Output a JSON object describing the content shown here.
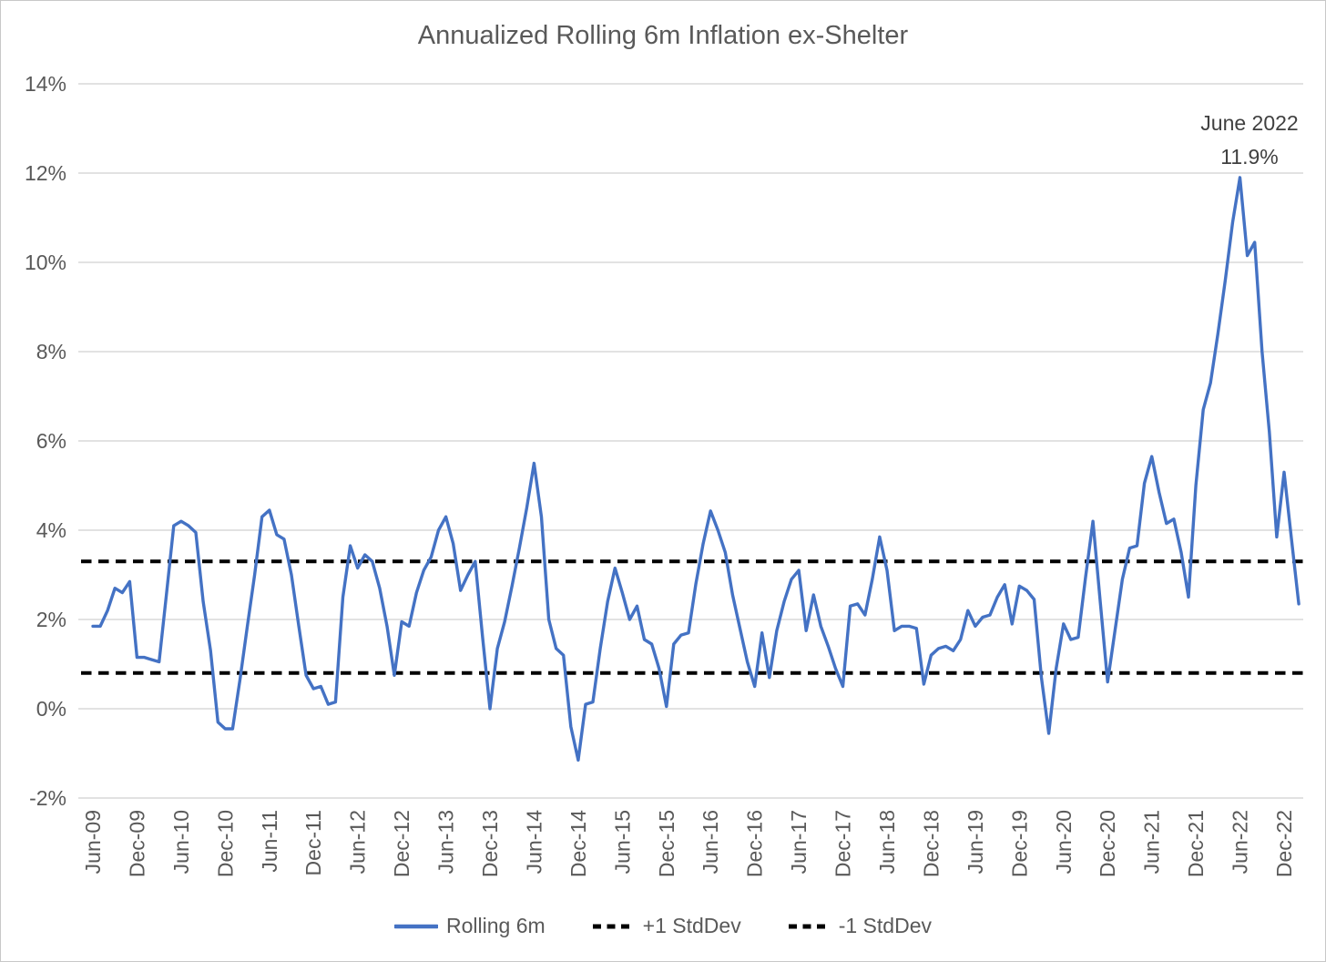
{
  "chart": {
    "title": "Annualized Rolling 6m Inflation ex-Shelter",
    "annotation": {
      "line1": "June 2022",
      "line2": "11.9%"
    }
  },
  "chart_data": {
    "type": "line",
    "title": "Annualized Rolling 6m Inflation ex-Shelter",
    "frequency": "monthly",
    "x_start": "Jun-09",
    "x_end": "Feb-23",
    "ylim": [
      -2,
      14
    ],
    "y_tick_labels": [
      "14%",
      "12%",
      "10%",
      "8%",
      "6%",
      "4%",
      "2%",
      "0%",
      "-2%"
    ],
    "y_tick_values": [
      14,
      12,
      10,
      8,
      6,
      4,
      2,
      0,
      -2
    ],
    "x_tick_labels": [
      "Jun-09",
      "Dec-09",
      "Jun-10",
      "Dec-10",
      "Jun-11",
      "Dec-11",
      "Jun-12",
      "Dec-12",
      "Jun-13",
      "Dec-13",
      "Jun-14",
      "Dec-14",
      "Jun-15",
      "Dec-15",
      "Jun-16",
      "Dec-16",
      "Jun-17",
      "Dec-17",
      "Jun-18",
      "Dec-18",
      "Jun-19",
      "Dec-19",
      "Jun-20",
      "Dec-20",
      "Jun-21",
      "Dec-21",
      "Jun-22",
      "Dec-22"
    ],
    "x_ticks_every_n_months": 6,
    "grid": "horizontal",
    "legend_position": "bottom",
    "annotation": {
      "line1": "June 2022",
      "line2": "11.9%",
      "at_x": "Jun-22",
      "at_y": 11.9
    },
    "series": [
      {
        "name": "Rolling 6m",
        "type": "line",
        "style": "solid",
        "color": "#4472C4",
        "values": [
          1.85,
          1.85,
          2.2,
          2.7,
          2.6,
          2.85,
          1.15,
          1.15,
          1.1,
          1.05,
          2.55,
          4.1,
          4.2,
          4.1,
          3.95,
          2.4,
          1.3,
          -0.3,
          -0.45,
          -0.45,
          0.65,
          1.85,
          3.0,
          4.3,
          4.45,
          3.9,
          3.8,
          3.0,
          1.85,
          0.75,
          0.45,
          0.5,
          0.1,
          0.15,
          2.5,
          3.65,
          3.15,
          3.45,
          3.3,
          2.7,
          1.85,
          0.75,
          1.95,
          1.85,
          2.6,
          3.1,
          3.4,
          4.0,
          4.3,
          3.7,
          2.65,
          3.0,
          3.3,
          1.6,
          0.0,
          1.35,
          1.95,
          2.75,
          3.6,
          4.5,
          5.5,
          4.3,
          2.0,
          1.35,
          1.2,
          -0.4,
          -1.15,
          0.1,
          0.15,
          1.35,
          2.4,
          3.15,
          2.6,
          2.0,
          2.3,
          1.55,
          1.45,
          0.9,
          0.05,
          1.45,
          1.65,
          1.7,
          2.8,
          3.7,
          4.43,
          4.0,
          3.5,
          2.55,
          1.8,
          1.05,
          0.5,
          1.7,
          0.7,
          1.75,
          2.4,
          2.9,
          3.1,
          1.75,
          2.55,
          1.85,
          1.4,
          0.9,
          0.5,
          2.3,
          2.35,
          2.1,
          2.9,
          3.85,
          3.1,
          1.75,
          1.85,
          1.85,
          1.8,
          0.55,
          1.2,
          1.35,
          1.4,
          1.3,
          1.55,
          2.2,
          1.85,
          2.05,
          2.1,
          2.5,
          2.78,
          1.9,
          2.75,
          2.65,
          2.45,
          0.7,
          -0.55,
          0.9,
          1.9,
          1.55,
          1.6,
          2.95,
          4.2,
          2.4,
          0.6,
          1.75,
          2.9,
          3.6,
          3.65,
          5.05,
          5.65,
          4.85,
          4.15,
          4.25,
          3.5,
          2.5,
          5.0,
          6.7,
          7.3,
          8.4,
          9.6,
          10.9,
          11.9,
          10.15,
          10.45,
          8.0,
          6.2,
          3.85,
          5.3,
          3.8,
          2.35
        ]
      },
      {
        "name": "+1 StdDev",
        "type": "hline",
        "style": "dashed",
        "color": "#000000",
        "value": 3.3
      },
      {
        "name": "-1 StdDev",
        "type": "hline",
        "style": "dashed",
        "color": "#000000",
        "value": 0.8
      }
    ],
    "colors": {
      "line": "#4472C4",
      "stddev": "#000000",
      "grid": "#D9D9D9",
      "text": "#595959",
      "annotation_text": "#404040",
      "background": "#FFFFFF",
      "border": "#C8C8C8"
    }
  }
}
